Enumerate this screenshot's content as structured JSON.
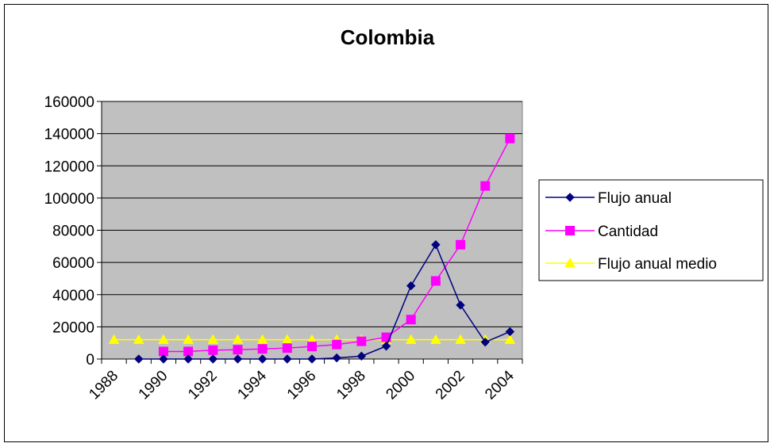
{
  "chart_data": {
    "type": "line",
    "title": "Colombia",
    "xlabel": "",
    "ylabel": "",
    "x": [
      1988,
      1989,
      1990,
      1991,
      1992,
      1993,
      1994,
      1995,
      1996,
      1997,
      1998,
      1999,
      2000,
      2001,
      2002,
      2003,
      2004
    ],
    "x_tick_labels": [
      "1988",
      "1990",
      "1992",
      "1994",
      "1996",
      "1998",
      "2000",
      "2002",
      "2004"
    ],
    "ylim": [
      0,
      160000
    ],
    "y_tick_labels": [
      "0",
      "20000",
      "40000",
      "60000",
      "80000",
      "100000",
      "120000",
      "140000",
      "160000"
    ],
    "grid": "horizontal",
    "legend_position": "right",
    "plot_background": "#C0C0C0",
    "series": [
      {
        "name": "Flujo anual",
        "color": "#000080",
        "marker": "diamond",
        "values": [
          null,
          0,
          0,
          0,
          0,
          0,
          0,
          0,
          0,
          700,
          1800,
          8000,
          45500,
          71000,
          33500,
          10500,
          17000
        ]
      },
      {
        "name": "Cantidad",
        "color": "#FF00FF",
        "marker": "square",
        "values": [
          null,
          null,
          4700,
          4700,
          5500,
          5800,
          6300,
          6800,
          7800,
          9000,
          11000,
          13500,
          24500,
          48500,
          71000,
          107500,
          137000
        ]
      },
      {
        "name": "Flujo anual medio",
        "color": "#FFFF00",
        "marker": "triangle",
        "values": [
          12000,
          12000,
          12000,
          12000,
          12000,
          12000,
          12000,
          12000,
          12000,
          12000,
          12000,
          12000,
          12000,
          12000,
          12000,
          12000,
          12000
        ]
      }
    ]
  }
}
